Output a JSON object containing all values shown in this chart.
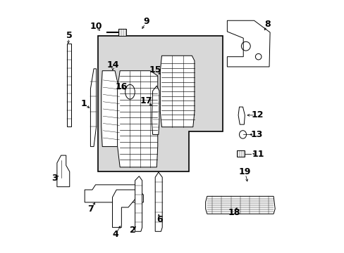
{
  "title": "",
  "background_color": "#ffffff",
  "diagram_bg": "#d8d8d8",
  "line_color": "#000000",
  "label_color": "#000000",
  "font_size_numbers": 9,
  "fig_width": 4.89,
  "fig_height": 3.6,
  "dpi": 100
}
